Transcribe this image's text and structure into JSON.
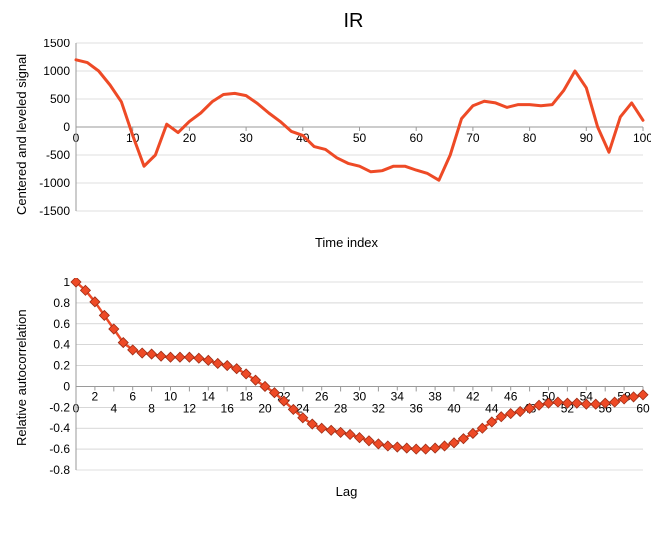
{
  "suptitle": "IR",
  "line_color": "#ee4a26",
  "panel1": {
    "type": "line",
    "ylabel": "Centered and leveled signal",
    "xlabel": "Time index",
    "xlim": [
      0,
      100
    ],
    "ylim": [
      -1500,
      1500
    ],
    "xticks": [
      0,
      10,
      20,
      30,
      40,
      50,
      60,
      70,
      80,
      90,
      100
    ],
    "yticks": [
      -1500,
      -1000,
      -500,
      0,
      500,
      1000,
      1500
    ],
    "line_width": 3,
    "x": [
      0,
      2,
      4,
      6,
      8,
      10,
      12,
      14,
      16,
      18,
      20,
      22,
      24,
      26,
      28,
      30,
      32,
      34,
      36,
      38,
      40,
      42,
      44,
      46,
      48,
      50,
      52,
      54,
      56,
      58,
      60,
      62,
      64,
      66,
      68,
      70,
      72,
      74,
      76,
      78,
      80,
      82,
      84,
      86,
      88,
      90,
      92,
      94,
      96,
      98,
      100
    ],
    "y": [
      1200,
      1150,
      1000,
      750,
      450,
      -150,
      -700,
      -500,
      50,
      -100,
      100,
      250,
      450,
      580,
      600,
      560,
      420,
      250,
      100,
      -80,
      -150,
      -350,
      -400,
      -550,
      -650,
      -700,
      -800,
      -780,
      -700,
      -700,
      -770,
      -830,
      -950,
      -500,
      150,
      380,
      460,
      430,
      350,
      400,
      400,
      380,
      400,
      650,
      1000,
      700,
      0,
      -450,
      180,
      430,
      120
    ]
  },
  "panel2": {
    "type": "line-markers",
    "ylabel": "Relative autocorrelation",
    "xlabel": "Lag",
    "xlim": [
      0,
      60
    ],
    "ylim": [
      -0.8,
      1.0
    ],
    "xticks_major": [
      0,
      4,
      8,
      12,
      16,
      20,
      24,
      28,
      32,
      36,
      40,
      44,
      48,
      52,
      56,
      60
    ],
    "xticks_minor": [
      2,
      6,
      10,
      14,
      18,
      22,
      26,
      30,
      34,
      38,
      42,
      46,
      50,
      54,
      58
    ],
    "yticks": [
      -0.8,
      -0.6,
      -0.4,
      -0.2,
      0,
      0.2,
      0.4,
      0.6,
      0.8,
      1
    ],
    "line_width": 2.5,
    "marker": "diamond",
    "marker_size": 5,
    "marker_fill": "#ee4a26",
    "marker_stroke": "#9c2c15",
    "x": [
      0,
      1,
      2,
      3,
      4,
      5,
      6,
      7,
      8,
      9,
      10,
      11,
      12,
      13,
      14,
      15,
      16,
      17,
      18,
      19,
      20,
      21,
      22,
      23,
      24,
      25,
      26,
      27,
      28,
      29,
      30,
      31,
      32,
      33,
      34,
      35,
      36,
      37,
      38,
      39,
      40,
      41,
      42,
      43,
      44,
      45,
      46,
      47,
      48,
      49,
      50,
      51,
      52,
      53,
      54,
      55,
      56,
      57,
      58,
      59,
      60
    ],
    "y": [
      1.0,
      0.92,
      0.81,
      0.68,
      0.55,
      0.42,
      0.35,
      0.32,
      0.31,
      0.29,
      0.28,
      0.28,
      0.28,
      0.27,
      0.25,
      0.22,
      0.2,
      0.17,
      0.12,
      0.06,
      0.0,
      -0.06,
      -0.14,
      -0.22,
      -0.3,
      -0.36,
      -0.4,
      -0.42,
      -0.44,
      -0.46,
      -0.49,
      -0.52,
      -0.55,
      -0.57,
      -0.58,
      -0.59,
      -0.6,
      -0.6,
      -0.59,
      -0.57,
      -0.54,
      -0.5,
      -0.45,
      -0.4,
      -0.34,
      -0.29,
      -0.26,
      -0.24,
      -0.21,
      -0.18,
      -0.16,
      -0.15,
      -0.16,
      -0.16,
      -0.17,
      -0.17,
      -0.16,
      -0.15,
      -0.12,
      -0.1,
      -0.08
    ]
  },
  "background_color": "#ffffff",
  "axis_color": "#9a9a9a",
  "grid_color": "#bfbfbf",
  "tick_fontsize": 12,
  "label_fontsize": 13,
  "title_fontsize": 20
}
